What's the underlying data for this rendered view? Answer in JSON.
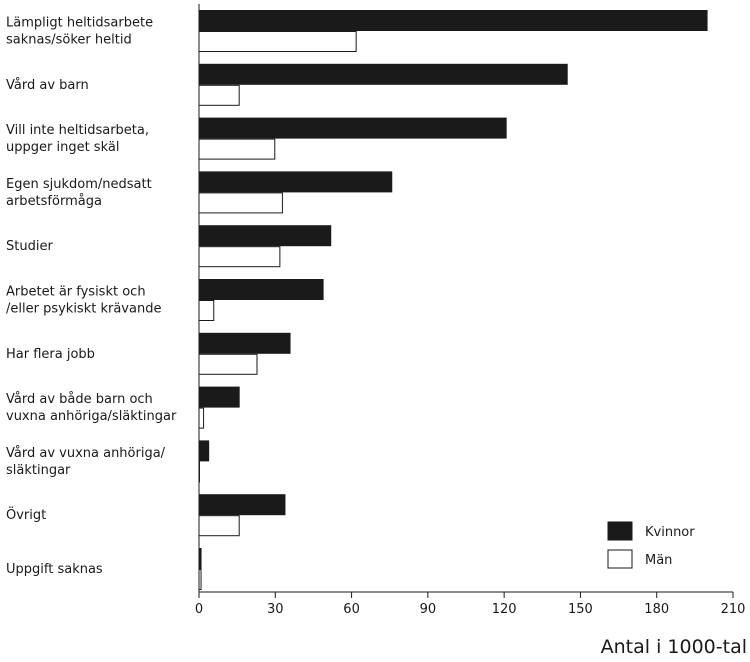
{
  "chart_data": {
    "type": "bar",
    "orientation": "horizontal",
    "categories": [
      [
        "Lämpligt heltidsarbete",
        "saknas/söker heltid"
      ],
      [
        "Vård av barn"
      ],
      [
        "Vill inte heltidsarbeta,",
        "uppger inget skäl"
      ],
      [
        "Egen sjukdom/nedsatt",
        "arbetsförmåga"
      ],
      [
        "Studier"
      ],
      [
        "Arbetet är fysiskt och",
        "/eller psykiskt krävande"
      ],
      [
        "Har flera jobb"
      ],
      [
        "Vård av både barn och",
        "vuxna anhöriga/släktingar"
      ],
      [
        "Vård av vuxna anhöriga/",
        "släktingar"
      ],
      [
        "Övrigt"
      ],
      [
        "Uppgift saknas"
      ]
    ],
    "series": [
      {
        "name": "Kvinnor",
        "color": "#1a1a1a",
        "fill": "solid",
        "values": [
          200,
          145,
          121,
          76,
          52,
          49,
          36,
          16,
          4,
          34,
          1
        ]
      },
      {
        "name": "Män",
        "color": "#ffffff",
        "fill": "outline",
        "values": [
          62,
          16,
          30,
          33,
          32,
          6,
          23,
          2,
          0,
          16,
          1
        ]
      }
    ],
    "xlim": [
      0,
      210
    ],
    "xticks": [
      0,
      30,
      60,
      90,
      120,
      150,
      180,
      210
    ],
    "xlabel": "Antal i 1000-tal",
    "grid": false,
    "legend_position": "bottom-right"
  }
}
